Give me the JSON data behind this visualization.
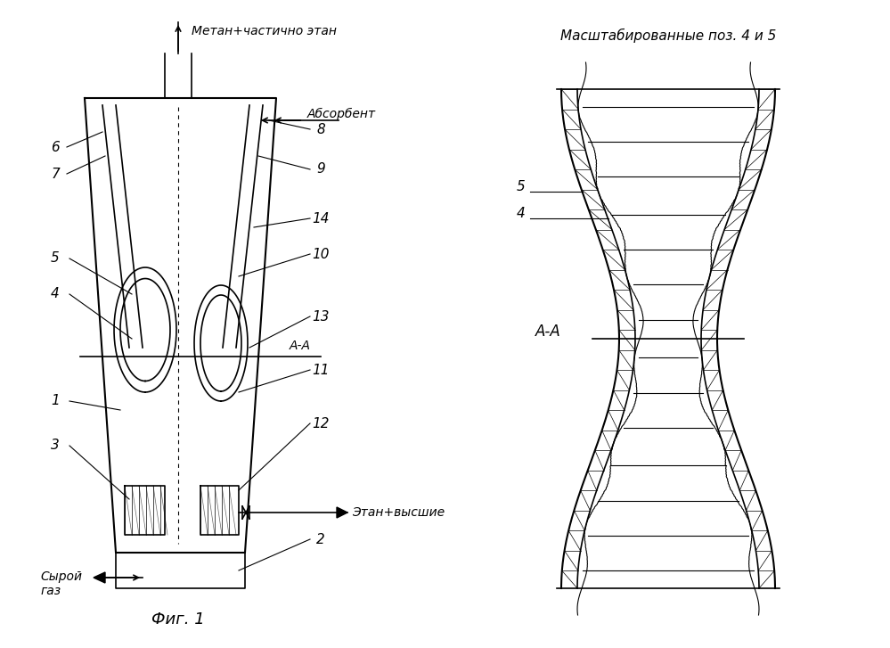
{
  "bg_color": "#ffffff",
  "title": "Фиг. 1",
  "right_title": "Масштабированные поз. 4 и 5",
  "top_label": "Метан+частично этан",
  "absorbent_label": "Абсорбент",
  "raw_gas_label": "Сырой\nгаз",
  "ethane_label": "Этан+высшие",
  "aa_label": "А-А",
  "numbers_left": [
    "6",
    "7",
    "5",
    "4",
    "1",
    "3"
  ],
  "numbers_right": [
    "8",
    "9",
    "14",
    "10",
    "13",
    "11",
    "12",
    "2"
  ]
}
